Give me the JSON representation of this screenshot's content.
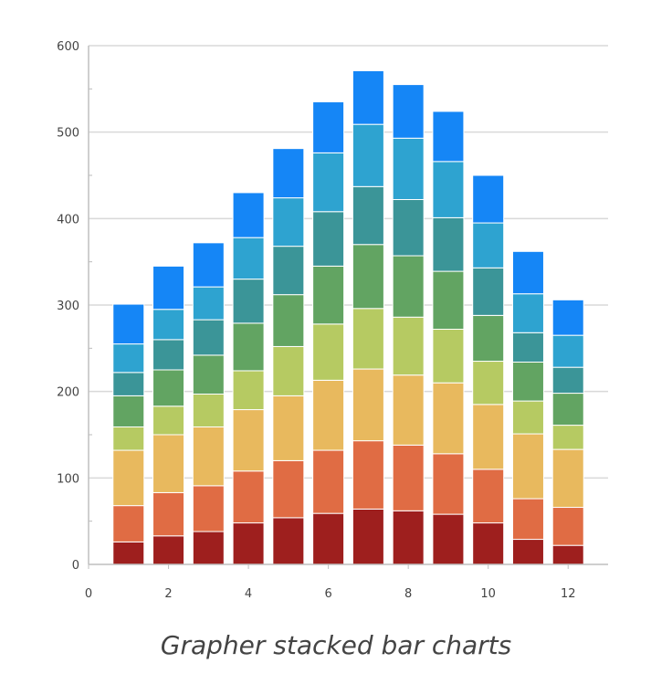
{
  "caption": "Grapher stacked bar charts",
  "chart_data": {
    "type": "bar",
    "stacked": true,
    "x": [
      1,
      2,
      3,
      4,
      5,
      6,
      7,
      8,
      9,
      10,
      11,
      12
    ],
    "xlim": [
      0,
      13
    ],
    "ylim": [
      0,
      600
    ],
    "x_ticks": [
      0,
      2,
      4,
      6,
      8,
      10,
      12
    ],
    "y_ticks": [
      0,
      100,
      200,
      300,
      400,
      500,
      600
    ],
    "grid": true,
    "series": [
      {
        "color": "#9e1f1e",
        "values": [
          26,
          33,
          38,
          48,
          54,
          59,
          64,
          62,
          58,
          48,
          29,
          22
        ]
      },
      {
        "color": "#e06c44",
        "values": [
          42,
          50,
          53,
          60,
          66,
          73,
          79,
          76,
          70,
          62,
          47,
          44
        ]
      },
      {
        "color": "#e8b95e",
        "values": [
          64,
          67,
          68,
          71,
          75,
          81,
          83,
          81,
          82,
          75,
          75,
          67
        ]
      },
      {
        "color": "#b6ca62",
        "values": [
          27,
          33,
          38,
          45,
          57,
          65,
          70,
          67,
          62,
          50,
          38,
          28
        ]
      },
      {
        "color": "#62a462",
        "values": [
          36,
          42,
          45,
          55,
          60,
          67,
          74,
          71,
          67,
          53,
          45,
          37
        ]
      },
      {
        "color": "#3b9598",
        "values": [
          27,
          35,
          41,
          51,
          56,
          63,
          67,
          65,
          62,
          55,
          34,
          30
        ]
      },
      {
        "color": "#2ea3d0",
        "values": [
          33,
          35,
          38,
          48,
          56,
          68,
          72,
          71,
          65,
          52,
          45,
          37
        ]
      },
      {
        "color": "#1586f6",
        "values": [
          46,
          50,
          51,
          52,
          57,
          59,
          62,
          62,
          58,
          55,
          49,
          41
        ]
      }
    ]
  }
}
